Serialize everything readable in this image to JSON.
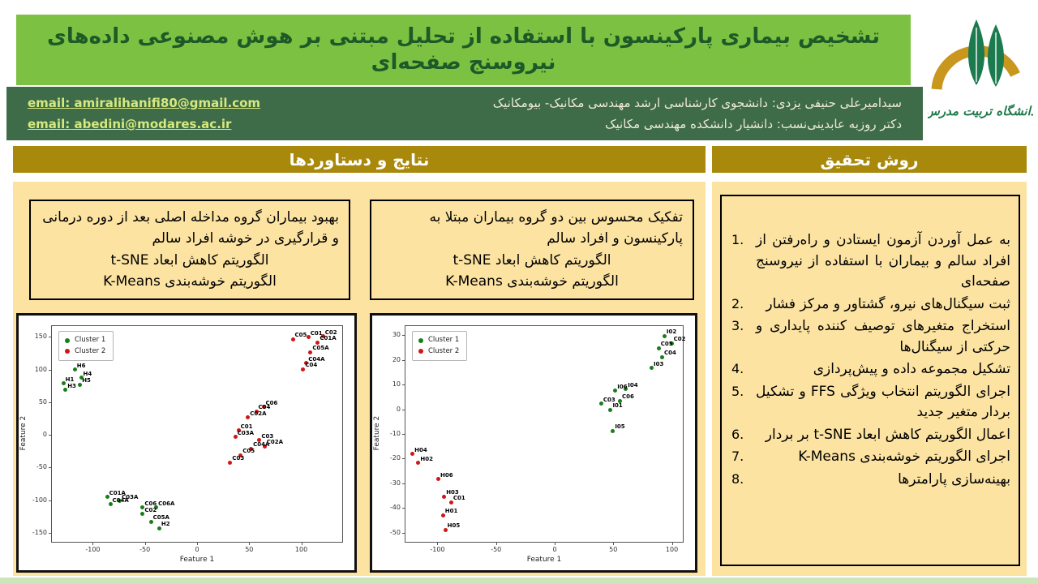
{
  "header": {
    "title": "تشخیص بیماری پارکینسون با استفاده از تحلیل مبتنی بر هوش مصنوعی داده‌های نیروسنج صفحه‌ای",
    "people": [
      {
        "desc": "سیدامیرعلی حنیفی یزدی: دانشجوی کارشناسی ارشد مهندسی مکانیک- بیومکانیک",
        "email_label": "email:",
        "email": "amiralihanifi80@gmail.com"
      },
      {
        "desc": "دکتر روزبه عابدینی‌نسب: دانشیار دانشکده مهندسی مکانیک",
        "email_label": "email:",
        "email": "abedini@modares.ac.ir"
      }
    ],
    "university": "دانشگاه تربیت مدرس"
  },
  "results": {
    "header": "نتایج و دستاوردها",
    "boxes": [
      {
        "text": "بهبود بیماران گروه مداخله اصلی بعد از دوره درمانی و قرارگیری در خوشه افراد سالم",
        "lines": [
          "الگوریتم کاهش ابعاد t-SNE",
          "الگوریتم خوشه‌بندی K-Means"
        ]
      },
      {
        "text": "تفکیک محسوس بین دو گروه بیماران مبتلا به پارکینسون و افراد سالم",
        "lines": [
          "الگوریتم کاهش ابعاد t-SNE",
          "الگوریتم خوشه‌بندی K-Means"
        ]
      }
    ]
  },
  "method": {
    "header": "روش تحقیق",
    "steps": [
      "به عمل آوردن آزمون ایستادن و راه‌رفتن از افراد سالم و بیماران با استفاده از نیروسنج صفحه‌ای",
      "ثبت سیگنال‌های نیرو، گشتاور و مرکز فشار",
      "استخراج متغیرهای توصیف کننده پایداری و حرکتی از سیگنال‌ها",
      "تشکیل مجموعه داده و پیش‌پردازی",
      "اجرای الگوریتم انتخاب ویژگی FFS و تشکیل بردار متغیر جدید",
      "اعمال الگوریتم کاهش ابعاد t-SNE بر بردار",
      "اجرای الگوریتم خوشه‌بندی K-Means",
      "بهینه‌سازی پارامترها"
    ]
  },
  "chart_data": [
    {
      "type": "scatter",
      "title": "",
      "xlabel": "Feature 1",
      "ylabel": "Feature 2",
      "xlim": [
        -140,
        140
      ],
      "ylim": [
        -165,
        168
      ],
      "xticks": [
        -100,
        -50,
        0,
        50,
        100
      ],
      "yticks": [
        -150,
        -100,
        -50,
        0,
        50,
        100,
        150
      ],
      "grid": false,
      "legend_position": "top-left",
      "series": [
        {
          "name": "Cluster 1",
          "color": "#1A7D1A",
          "points": [
            {
              "label": "H6",
              "x": -118,
              "y": 101
            },
            {
              "label": "H4",
              "x": -112,
              "y": 89
            },
            {
              "label": "H1",
              "x": -129,
              "y": 80
            },
            {
              "label": "H5",
              "x": -113,
              "y": 78
            },
            {
              "label": "H3",
              "x": -127,
              "y": 70
            },
            {
              "label": "C01A",
              "x": -87,
              "y": -94
            },
            {
              "label": "C03A",
              "x": -75,
              "y": -100
            },
            {
              "label": "C04A",
              "x": -84,
              "y": -105
            },
            {
              "label": "C06",
              "x": -53,
              "y": -110
            },
            {
              "label": "C06A",
              "x": -40,
              "y": -110
            },
            {
              "label": "C02",
              "x": -53,
              "y": -120
            },
            {
              "label": "C05A",
              "x": -45,
              "y": -132
            },
            {
              "label": "H2",
              "x": -37,
              "y": -142
            }
          ]
        },
        {
          "name": "Cluster 2",
          "color": "#D01616",
          "points": [
            {
              "label": "C05",
              "x": 91,
              "y": 148
            },
            {
              "label": "C01",
              "x": 106,
              "y": 151
            },
            {
              "label": "C02",
              "x": 120,
              "y": 152
            },
            {
              "label": "C01A",
              "x": 115,
              "y": 143
            },
            {
              "label": "C05A",
              "x": 108,
              "y": 128
            },
            {
              "label": "C04A",
              "x": 104,
              "y": 111
            },
            {
              "label": "C04",
              "x": 101,
              "y": 102
            },
            {
              "label": "C06",
              "x": 63,
              "y": 44
            },
            {
              "label": "C04",
              "x": 56,
              "y": 37
            },
            {
              "label": "C02A",
              "x": 48,
              "y": 28
            },
            {
              "label": "C01",
              "x": 39,
              "y": 8
            },
            {
              "label": "C03A",
              "x": 36,
              "y": -2
            },
            {
              "label": "C03",
              "x": 59,
              "y": -7
            },
            {
              "label": "C02A",
              "x": 64,
              "y": -16
            },
            {
              "label": "C04A",
              "x": 51,
              "y": -20
            },
            {
              "label": "C05",
              "x": 41,
              "y": -30
            },
            {
              "label": "C03",
              "x": 31,
              "y": -41
            }
          ]
        }
      ]
    },
    {
      "type": "scatter",
      "title": "",
      "xlabel": "Feature 1",
      "ylabel": "Feature 2",
      "xlim": [
        -128,
        110
      ],
      "ylim": [
        -54,
        34
      ],
      "xticks": [
        -100,
        -50,
        0,
        50,
        100
      ],
      "yticks": [
        -50,
        -40,
        -30,
        -20,
        -10,
        0,
        10,
        20,
        30
      ],
      "grid": false,
      "legend_position": "top-left",
      "series": [
        {
          "name": "Cluster 1",
          "color": "#1A7D1A",
          "points": [
            {
              "label": "I02",
              "x": 93,
              "y": 30
            },
            {
              "label": "C02",
              "x": 99,
              "y": 27
            },
            {
              "label": "C05",
              "x": 88,
              "y": 25
            },
            {
              "label": "C04",
              "x": 91,
              "y": 21.5
            },
            {
              "label": "I03",
              "x": 82,
              "y": 17
            },
            {
              "label": "I04",
              "x": 60,
              "y": 8.4
            },
            {
              "label": "I06",
              "x": 51,
              "y": 7.8
            },
            {
              "label": "C06",
              "x": 55,
              "y": 3.7
            },
            {
              "label": "C03",
              "x": 39,
              "y": 2.5
            },
            {
              "label": "I01",
              "x": 47,
              "y": 0.1
            },
            {
              "label": "I05",
              "x": 49,
              "y": -8.4
            }
          ]
        },
        {
          "name": "Cluster 2",
          "color": "#D01616",
          "points": [
            {
              "label": "H04",
              "x": -122,
              "y": -17.8
            },
            {
              "label": "H02",
              "x": -117,
              "y": -21.4
            },
            {
              "label": "H06",
              "x": -100,
              "y": -28
            },
            {
              "label": "H03",
              "x": -95,
              "y": -35
            },
            {
              "label": "C01",
              "x": -89,
              "y": -37.3
            },
            {
              "label": "H01",
              "x": -96,
              "y": -42.6
            },
            {
              "label": "H05",
              "x": -94,
              "y": -48.5
            }
          ]
        }
      ]
    }
  ],
  "colors": {
    "title_bg": "#7CC142",
    "title_text": "#1D5A28",
    "authors_bg": "#3E6B48",
    "email": "#D6E97E",
    "gold": "#A9890B",
    "panel": "#FCE3A2",
    "footer": "#CBE7BA",
    "cluster1": "#1A7D1A",
    "cluster2": "#D01616"
  }
}
